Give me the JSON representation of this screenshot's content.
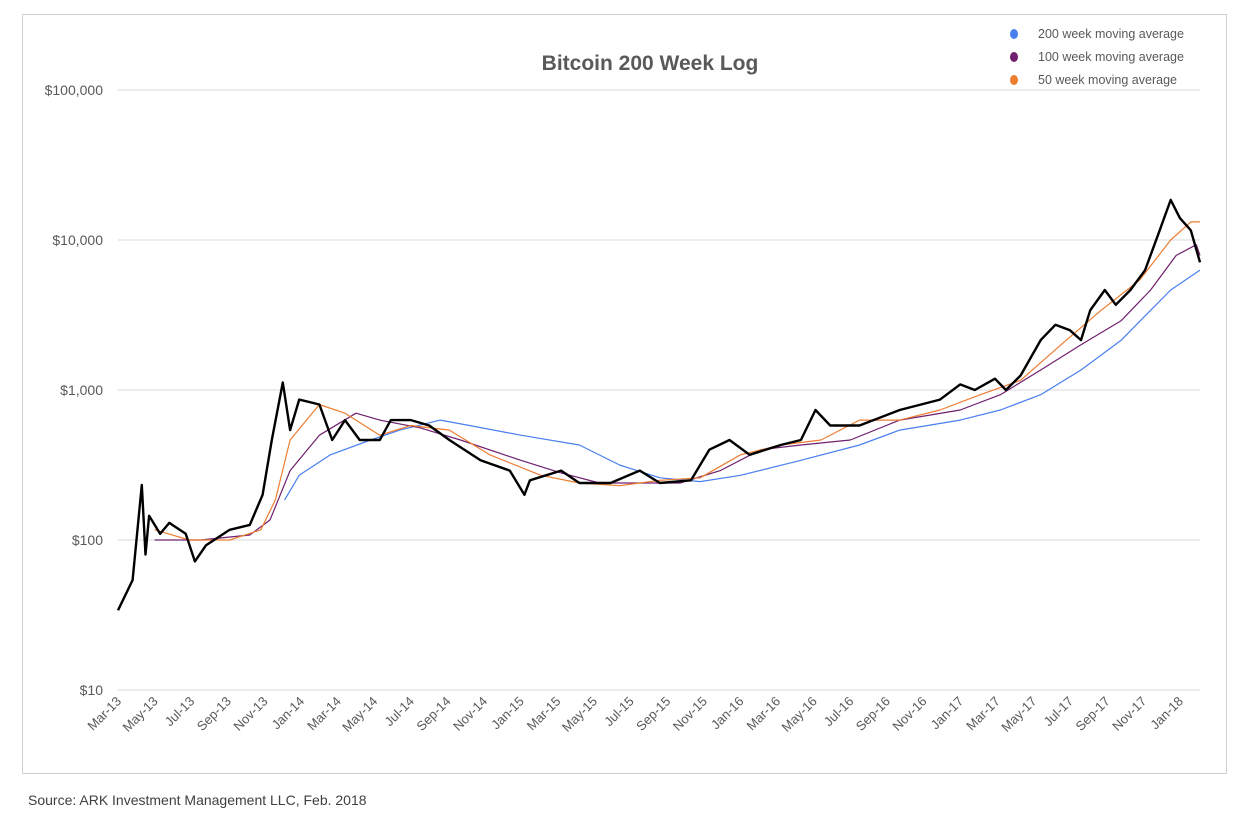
{
  "source": "Source: ARK Investment Management LLC, Feb. 2018",
  "chart_data": {
    "type": "line",
    "title": "Bitcoin 200 Week Log",
    "xlabel": "",
    "ylabel": "",
    "x_units": "months since Mar-2013",
    "y_scale": "log",
    "ylim": [
      10,
      100000
    ],
    "xlim": [
      0,
      59.1
    ],
    "grid": true,
    "legend_position": "top-right",
    "y_ticks": [
      {
        "value": 10,
        "label": "$10"
      },
      {
        "value": 100,
        "label": "$100"
      },
      {
        "value": 1000,
        "label": "$1,000"
      },
      {
        "value": 10000,
        "label": "$10,000"
      },
      {
        "value": 100000,
        "label": "$100,000"
      }
    ],
    "x_tick_labels": [
      "Mar-13",
      "May-13",
      "Jul-13",
      "Sep-13",
      "Nov-13",
      "Jan-14",
      "Mar-14",
      "May-14",
      "Jul-14",
      "Sep-14",
      "Nov-14",
      "Jan-15",
      "Mar-15",
      "May-15",
      "Jul-15",
      "Sep-15",
      "Nov-15",
      "Jan-16",
      "Mar-16",
      "May-16",
      "Jul-16",
      "Sep-16",
      "Nov-16",
      "Jan-17",
      "Mar-17",
      "May-17",
      "Jul-17",
      "Sep-17",
      "Nov-17",
      "Jan-18"
    ],
    "series": [
      {
        "name": "Bitcoin price",
        "color": "#000000",
        "legend": false,
        "x": [
          0,
          0.8,
          1.3,
          1.5,
          1.7,
          2.3,
          2.8,
          3.7,
          4.2,
          4.8,
          6.1,
          7.2,
          7.9,
          8.4,
          9.0,
          9.4,
          9.9,
          11.0,
          11.7,
          12.4,
          13.2,
          14.3,
          14.9,
          16.0,
          17.0,
          18.1,
          19.8,
          21.4,
          22.2,
          22.5,
          24.2,
          25.2,
          26.9,
          28.5,
          29.6,
          31.3,
          32.3,
          33.4,
          34.5,
          36.2,
          37.3,
          38.1,
          38.9,
          40.5,
          42.7,
          44.9,
          46.0,
          46.8,
          47.9,
          48.5,
          49.3,
          50.4,
          51.2,
          52.0,
          52.6,
          53.1,
          53.9,
          54.5,
          55.3,
          56.1,
          56.9,
          57.5,
          58.0,
          58.6,
          59.1
        ],
        "y": [
          34,
          54,
          233,
          80,
          145,
          110,
          130,
          110,
          72,
          92,
          117,
          126,
          200,
          464,
          1122,
          540,
          863,
          800,
          464,
          630,
          464,
          464,
          630,
          630,
          580,
          464,
          340,
          290,
          200,
          250,
          290,
          240,
          240,
          290,
          240,
          250,
          400,
          464,
          370,
          430,
          464,
          736,
          580,
          580,
          736,
          863,
          1090,
          1000,
          1190,
          1000,
          1250,
          2150,
          2720,
          2500,
          2150,
          3400,
          4640,
          3700,
          4640,
          6300,
          11600,
          18500,
          14000,
          11600,
          7100
        ]
      },
      {
        "name": "200 week moving average",
        "color": "#4a7ff0",
        "legend": true,
        "x": [
          9.1,
          9.9,
          11.6,
          13.8,
          15.4,
          17.6,
          19.2,
          22.0,
          25.2,
          27.4,
          29.6,
          31.8,
          34.0,
          37.3,
          40.5,
          42.7,
          46.0,
          48.2,
          50.4,
          52.6,
          54.8,
          56.4,
          57.5,
          59.1
        ],
        "y": [
          185,
          270,
          370,
          464,
          540,
          630,
          580,
          500,
          430,
          316,
          260,
          245,
          270,
          340,
          430,
          540,
          630,
          736,
          930,
          1360,
          2150,
          3400,
          4640,
          6300
        ]
      },
      {
        "name": "100 week moving average",
        "color": "#70206e",
        "legend": true,
        "x": [
          2.0,
          4.5,
          7.2,
          8.3,
          9.4,
          11.0,
          13.0,
          14.3,
          16.5,
          18.7,
          22.0,
          24.2,
          26.3,
          28.5,
          30.7,
          32.9,
          35.1,
          37.3,
          40.0,
          42.7,
          46.0,
          48.2,
          50.4,
          52.6,
          54.8,
          56.4,
          57.8,
          58.9,
          59.1
        ],
        "y": [
          100,
          100,
          108,
          136,
          290,
          500,
          700,
          630,
          560,
          464,
          340,
          280,
          240,
          240,
          240,
          290,
          400,
          430,
          464,
          630,
          736,
          930,
          1360,
          2000,
          2900,
          4640,
          7900,
          9300,
          7900
        ]
      },
      {
        "name": "50 week moving average",
        "color": "#ed7d31",
        "legend": true,
        "x": [
          2.0,
          3.9,
          6.1,
          7.8,
          8.6,
          9.4,
          11.0,
          12.4,
          14.3,
          16.0,
          18.1,
          20.3,
          23.1,
          25.2,
          27.4,
          29.6,
          31.8,
          34.0,
          36.2,
          38.4,
          40.5,
          42.7,
          44.9,
          47.1,
          49.3,
          51.5,
          53.7,
          55.8,
          57.5,
          58.6,
          59.1
        ],
        "y": [
          117,
          100,
          100,
          117,
          185,
          464,
          800,
          700,
          500,
          580,
          540,
          370,
          270,
          240,
          230,
          250,
          260,
          370,
          430,
          464,
          630,
          630,
          736,
          930,
          1160,
          2000,
          3400,
          5400,
          10000,
          13200,
          13200
        ]
      }
    ]
  }
}
